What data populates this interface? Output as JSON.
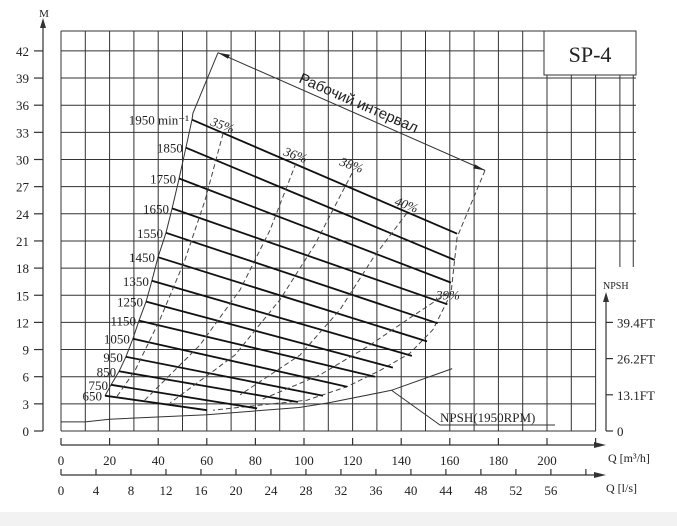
{
  "chart_data": {
    "type": "line",
    "title": "SP-4",
    "xlabel": "Q [m³/h]",
    "xlabel2": "Q [l/s]",
    "ylabel": "M",
    "ylabel_right": "NPSH",
    "xlim": [
      0,
      220
    ],
    "ylim": [
      0,
      44
    ],
    "grid": true,
    "x_ticks": [
      "0",
      "20",
      "40",
      "60",
      "80",
      "100",
      "120",
      "140",
      "160",
      "180",
      "200"
    ],
    "x2_ticks": [
      "0",
      "4",
      "8",
      "12",
      "16",
      "20",
      "24",
      "28",
      "32",
      "36",
      "40",
      "44",
      "48",
      "52",
      "56"
    ],
    "y_ticks": [
      "0",
      "3",
      "6",
      "9",
      "12",
      "15",
      "18",
      "21",
      "24",
      "27",
      "30",
      "33",
      "36",
      "39",
      "42"
    ],
    "npsh_ticks": [
      {
        "label": "0",
        "value_m": 0
      },
      {
        "label": "13.1FT",
        "value_m": 4
      },
      {
        "label": "26.2FT",
        "value_m": 8
      },
      {
        "label": "39.4FT",
        "value_m": 12
      }
    ],
    "speed_curves": [
      {
        "name": "1950 min⁻¹",
        "points": [
          [
            53.9,
            34.4
          ],
          [
            163,
            21.8
          ]
        ]
      },
      {
        "name": "1850",
        "points": [
          [
            51.4,
            31.3
          ],
          [
            162,
            18.9
          ]
        ]
      },
      {
        "name": "1750",
        "points": [
          [
            48.6,
            27.9
          ],
          [
            160.5,
            16.4
          ]
        ]
      },
      {
        "name": "1650",
        "points": [
          [
            45.7,
            24.6
          ],
          [
            159,
            14.0
          ]
        ]
      },
      {
        "name": "1550",
        "points": [
          [
            43.2,
            21.9
          ],
          [
            155,
            11.9
          ]
        ]
      },
      {
        "name": "1450",
        "points": [
          [
            39.9,
            19.2
          ],
          [
            150.6,
            9.9
          ]
        ]
      },
      {
        "name": "1350",
        "points": [
          [
            37.4,
            16.6
          ],
          [
            144.4,
            8.3
          ]
        ]
      },
      {
        "name": "1250",
        "points": [
          [
            35.0,
            14.3
          ],
          [
            136.6,
            7.0
          ]
        ]
      },
      {
        "name": "1150",
        "points": [
          [
            32.1,
            12.2
          ],
          [
            129.2,
            6.0
          ]
        ]
      },
      {
        "name": "1050",
        "points": [
          [
            29.6,
            10.2
          ],
          [
            117.7,
            4.9
          ]
        ]
      },
      {
        "name": "950",
        "points": [
          [
            26.7,
            8.2
          ],
          [
            107.8,
            3.9
          ]
        ]
      },
      {
        "name": "850",
        "points": [
          [
            23.9,
            6.6
          ],
          [
            97.5,
            3.2
          ]
        ]
      },
      {
        "name": "750",
        "points": [
          [
            20.6,
            5.1
          ],
          [
            80.7,
            2.5
          ]
        ]
      },
      {
        "name": "650",
        "points": [
          [
            18.1,
            3.9
          ],
          [
            60.1,
            2.3
          ]
        ]
      }
    ],
    "efficiency_curves": [
      {
        "name": "35%",
        "points": [
          [
            66.7,
            32.9
          ],
          [
            59.3,
            25.5
          ],
          [
            51.0,
            18.9
          ],
          [
            40.7,
            12.3
          ],
          [
            30.5,
            6.7
          ],
          [
            23.0,
            3.8
          ]
        ]
      },
      {
        "name": "36%",
        "points": [
          [
            96.7,
            29.6
          ],
          [
            86.0,
            22.2
          ],
          [
            73.7,
            15.6
          ],
          [
            57.2,
            9.5
          ],
          [
            33.7,
            3.2
          ]
        ]
      },
      {
        "name": "38%",
        "points": [
          [
            119.8,
            28.5
          ],
          [
            104.5,
            20.6
          ],
          [
            90.1,
            14.5
          ],
          [
            71.6,
            8.4
          ],
          [
            44.9,
            3.1
          ]
        ]
      },
      {
        "name": "40%",
        "points": [
          [
            142.4,
            24.1
          ],
          [
            128.4,
            19.1
          ],
          [
            114.8,
            13.4
          ],
          [
            98.4,
            8.4
          ],
          [
            73.7,
            4.0
          ]
        ]
      },
      {
        "name": "39%",
        "points": [
          [
            158.8,
            15.2
          ],
          [
            143.6,
            12.5
          ],
          [
            127.2,
            9.5
          ],
          [
            106.6,
            6.2
          ],
          [
            81.9,
            3.4
          ]
        ]
      }
    ],
    "right_boundary": [
      [
        174.5,
        28.8
      ],
      [
        163,
        21.4
      ],
      [
        160.5,
        15.2
      ],
      [
        153.1,
        11.2
      ],
      [
        143.6,
        8.6
      ],
      [
        131.3,
        6.7
      ],
      [
        117.7,
        4.9
      ],
      [
        101.2,
        3.4
      ],
      [
        83.1,
        2.9
      ],
      [
        62.6,
        2.3
      ]
    ],
    "left_boundary": [
      [
        64.6,
        41.8
      ],
      [
        54.3,
        35.1
      ],
      [
        53.9,
        34.4
      ],
      [
        51.4,
        31.3
      ],
      [
        48.6,
        27.9
      ],
      [
        45.7,
        24.6
      ],
      [
        43.2,
        21.9
      ],
      [
        39.9,
        19.2
      ],
      [
        37.4,
        16.6
      ],
      [
        35.0,
        14.3
      ],
      [
        32.1,
        12.2
      ],
      [
        29.6,
        10.2
      ],
      [
        26.7,
        8.2
      ],
      [
        23.9,
        6.6
      ],
      [
        20.6,
        5.1
      ],
      [
        18.1,
        3.9
      ]
    ],
    "operating_range": {
      "label": "Рабочий интервал",
      "from": [
        64.6,
        41.8
      ],
      "to": [
        174.5,
        28.8
      ]
    },
    "npsh_curve": {
      "name": "NPSH(1950RPM)",
      "points": [
        [
          0,
          1.0
        ],
        [
          10,
          1.0
        ],
        [
          20,
          1.3
        ],
        [
          60,
          1.8
        ],
        [
          98,
          2.6
        ],
        [
          110,
          3.1
        ],
        [
          136,
          4.5
        ],
        [
          161,
          6.9
        ]
      ]
    }
  }
}
